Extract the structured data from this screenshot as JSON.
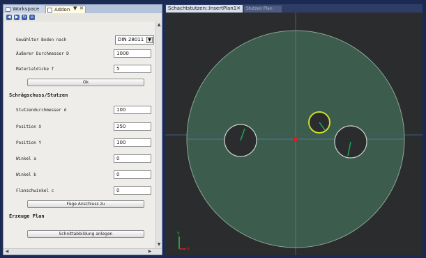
{
  "left_pane": {
    "tabs": [
      {
        "label": "Workspace"
      },
      {
        "label": "Addon"
      }
    ],
    "tab_controls": {
      "pin": "▼",
      "close": "✕"
    },
    "toolbar_icons": [
      "back-icon",
      "forward-icon",
      "refresh-icon",
      "home-icon"
    ],
    "form": {
      "norm_label": "Gewählter Boden nach",
      "norm_value": "DIN 28011",
      "outer_diameter_label": "Äußerer Durchmesser D",
      "outer_diameter_value": "1000",
      "thickness_label": "Materialdicke T",
      "thickness_value": "5",
      "apply_button": "Ok",
      "section_title": "Schrägschuss/Stutzen",
      "nozzle_diameter_label": "Stutzendurchmesser d",
      "nozzle_diameter_value": "100",
      "position_x_label": "Position X",
      "position_x_value": "250",
      "position_y_label": "Position Y",
      "position_y_value": "100",
      "angle_a_label": "Winkel a",
      "angle_a_value": "0",
      "angle_b_label": "Winkel b",
      "angle_b_value": "0",
      "flange_angle_label": "Flanschwinkel c",
      "flange_angle_value": "0",
      "add_nozzle_button": "Füge Anschluss zu",
      "generate_section": "Erzeuge Plan",
      "create_plan_button": "Schnittabbildung anlegen"
    }
  },
  "viewport": {
    "active_tab": "Schachtstutzen::InsertPlan1",
    "inactive_tab": "Stutzen Plan",
    "tab_close": "✕",
    "axis_y_label": "Y",
    "axis_x_label": "X",
    "colors": {
      "background": "#2a2c2e",
      "disk_fill": "#3d5e50",
      "disk_outline": "#8fa698",
      "hole_outline": "#cfd5cf",
      "selected_outline": "#c8e02a",
      "origin": "#e02020",
      "gridline": "#4a6e96"
    }
  }
}
